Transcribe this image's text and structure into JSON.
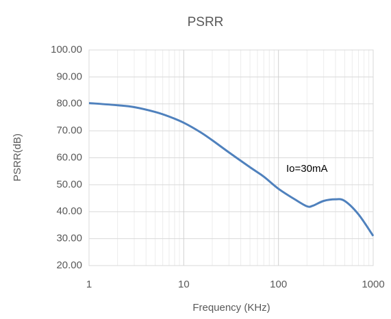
{
  "chart_data": {
    "type": "line",
    "title": "PSRR",
    "x_label": "Frequency (KHz)",
    "y_label": "PSRR(dB)",
    "x": [
      1,
      2,
      3,
      5,
      7,
      10,
      15,
      20,
      30,
      50,
      70,
      100,
      150,
      200,
      230,
      300,
      400,
      500,
      700,
      1000
    ],
    "series": [
      {
        "name": "Io=30mA",
        "color": "#4f81bd",
        "values": [
          80.3,
          79.5,
          78.8,
          77,
          75.3,
          73,
          69.5,
          66.5,
          62,
          56.5,
          53,
          48.5,
          44.5,
          42,
          42.2,
          44,
          44.6,
          44,
          39,
          31
        ]
      }
    ],
    "xlim": [
      1,
      1000
    ],
    "xticks": [
      1,
      10,
      100,
      1000
    ],
    "xlog": true,
    "ylim": [
      20,
      100
    ],
    "yticks": [
      {
        "value": 20,
        "label": "20.00"
      },
      {
        "value": 30,
        "label": "30.00"
      },
      {
        "value": 40,
        "label": "40.00"
      },
      {
        "value": 50,
        "label": "50.00"
      },
      {
        "value": 60,
        "label": "60.00"
      },
      {
        "value": 70,
        "label": "70.00"
      },
      {
        "value": 80,
        "label": "80.00"
      },
      {
        "value": 90,
        "label": "90.00"
      },
      {
        "value": 100,
        "label": "100.00"
      }
    ],
    "grid": true,
    "minor_grid": true
  }
}
